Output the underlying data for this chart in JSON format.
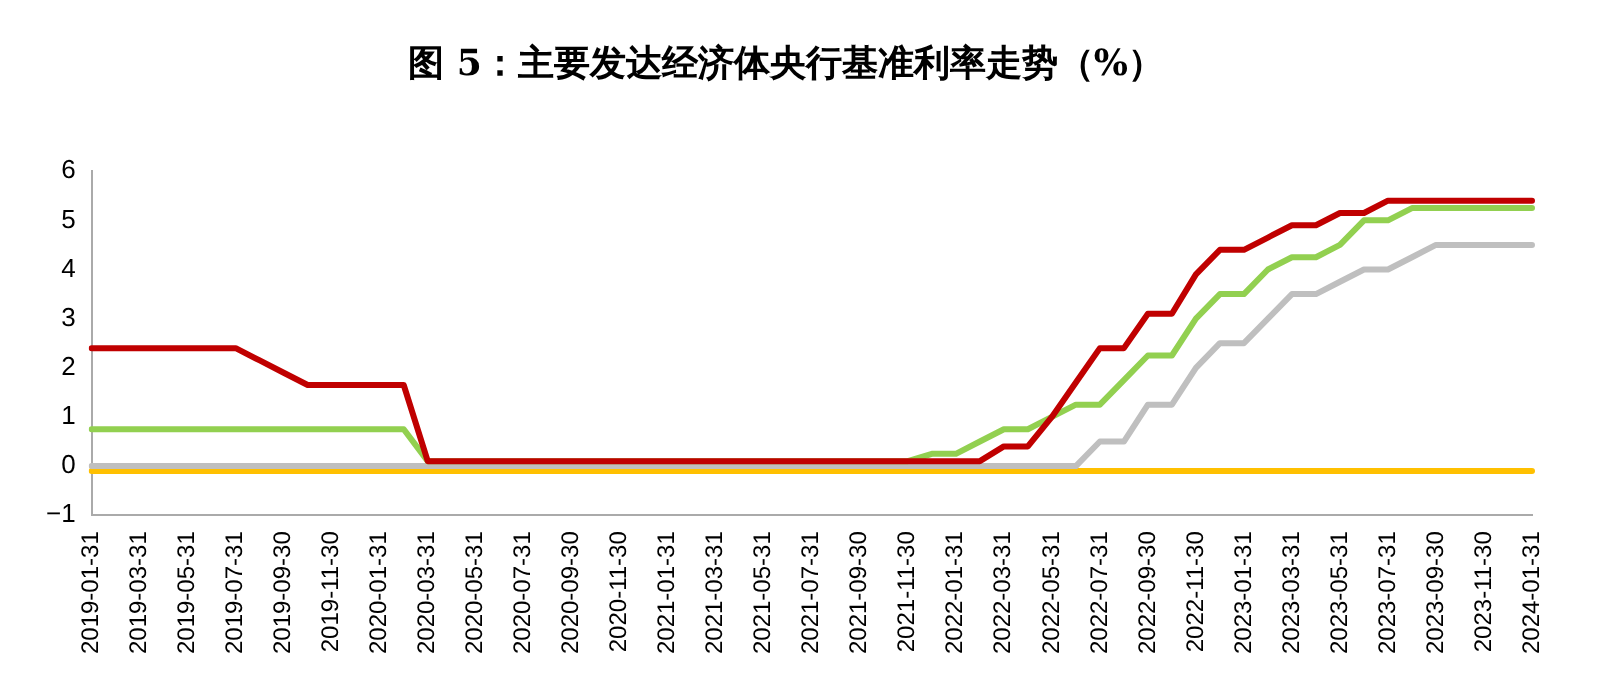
{
  "chart_data": {
    "type": "line",
    "title": "图 5：主要发达经济体央行基准利率走势（%）",
    "categories": [
      "2019-01-31",
      null,
      "2019-03-31",
      null,
      "2019-05-31",
      null,
      "2019-07-31",
      null,
      "2019-09-30",
      null,
      "2019-11-30",
      null,
      "2020-01-31",
      null,
      "2020-03-31",
      null,
      "2020-05-31",
      null,
      "2020-07-31",
      null,
      "2020-09-30",
      null,
      "2020-11-30",
      null,
      "2021-01-31",
      null,
      "2021-03-31",
      null,
      "2021-05-31",
      null,
      "2021-07-31",
      null,
      "2021-09-30",
      null,
      "2021-11-30",
      null,
      "2022-01-31",
      null,
      "2022-03-31",
      null,
      "2022-05-31",
      null,
      "2022-07-31",
      null,
      "2022-09-30",
      null,
      "2022-11-30",
      null,
      "2023-01-31",
      null,
      "2023-03-31",
      null,
      "2023-05-31",
      null,
      "2023-07-31",
      null,
      "2023-09-30",
      null,
      "2023-11-30",
      null,
      "2024-01-31"
    ],
    "series": [
      {
        "color": "#c00000",
        "values": [
          2.4,
          2.4,
          2.4,
          2.4,
          2.4,
          2.4,
          2.4,
          2.15,
          1.9,
          1.65,
          1.65,
          1.65,
          1.65,
          1.65,
          0.1,
          0.1,
          0.1,
          0.1,
          0.1,
          0.1,
          0.1,
          0.1,
          0.1,
          0.1,
          0.1,
          0.1,
          0.1,
          0.1,
          0.1,
          0.1,
          0.1,
          0.1,
          0.1,
          0.1,
          0.1,
          0.1,
          0.1,
          0.1,
          0.4,
          0.4,
          1.0,
          1.7,
          2.4,
          2.4,
          3.1,
          3.1,
          3.9,
          4.4,
          4.4,
          4.65,
          4.9,
          4.9,
          5.15,
          5.15,
          5.4,
          5.4,
          5.4,
          5.4,
          5.4,
          5.4,
          5.4
        ]
      },
      {
        "color": "#92d050",
        "values": [
          0.75,
          0.75,
          0.75,
          0.75,
          0.75,
          0.75,
          0.75,
          0.75,
          0.75,
          0.75,
          0.75,
          0.75,
          0.75,
          0.75,
          0.1,
          0.1,
          0.1,
          0.1,
          0.1,
          0.1,
          0.1,
          0.1,
          0.1,
          0.1,
          0.1,
          0.1,
          0.1,
          0.1,
          0.1,
          0.1,
          0.1,
          0.1,
          0.1,
          0.1,
          0.1,
          0.25,
          0.25,
          0.5,
          0.75,
          0.75,
          1.0,
          1.25,
          1.25,
          1.75,
          2.25,
          2.25,
          3.0,
          3.5,
          3.5,
          4.0,
          4.25,
          4.25,
          4.5,
          5.0,
          5.0,
          5.25,
          5.25,
          5.25,
          5.25,
          5.25,
          5.25
        ]
      },
      {
        "color": "#bfbfbf",
        "values": [
          0,
          0,
          0,
          0,
          0,
          0,
          0,
          0,
          0,
          0,
          0,
          0,
          0,
          0,
          0,
          0,
          0,
          0,
          0,
          0,
          0,
          0,
          0,
          0,
          0,
          0,
          0,
          0,
          0,
          0,
          0,
          0,
          0,
          0,
          0,
          0,
          0,
          0,
          0,
          0,
          0,
          0,
          0.5,
          0.5,
          1.25,
          1.25,
          2.0,
          2.5,
          2.5,
          3.0,
          3.5,
          3.5,
          3.75,
          4.0,
          4.0,
          4.25,
          4.5,
          4.5,
          4.5,
          4.5,
          4.5
        ]
      },
      {
        "color": "#ffc000",
        "values": [
          -0.1,
          -0.1,
          -0.1,
          -0.1,
          -0.1,
          -0.1,
          -0.1,
          -0.1,
          -0.1,
          -0.1,
          -0.1,
          -0.1,
          -0.1,
          -0.1,
          -0.1,
          -0.1,
          -0.1,
          -0.1,
          -0.1,
          -0.1,
          -0.1,
          -0.1,
          -0.1,
          -0.1,
          -0.1,
          -0.1,
          -0.1,
          -0.1,
          -0.1,
          -0.1,
          -0.1,
          -0.1,
          -0.1,
          -0.1,
          -0.1,
          -0.1,
          -0.1,
          -0.1,
          -0.1,
          -0.1,
          -0.1,
          -0.1,
          -0.1,
          -0.1,
          -0.1,
          -0.1,
          -0.1,
          -0.1,
          -0.1,
          -0.1,
          -0.1,
          -0.1,
          -0.1,
          -0.1,
          -0.1,
          -0.1,
          -0.1,
          -0.1,
          -0.1,
          -0.1,
          -0.1
        ]
      }
    ],
    "ylim": [
      -1,
      6
    ],
    "yticks": [
      -1,
      0,
      1,
      2,
      3,
      4,
      5,
      6
    ],
    "grid": false,
    "legend": false,
    "marker": "none",
    "line_style": "solid"
  }
}
